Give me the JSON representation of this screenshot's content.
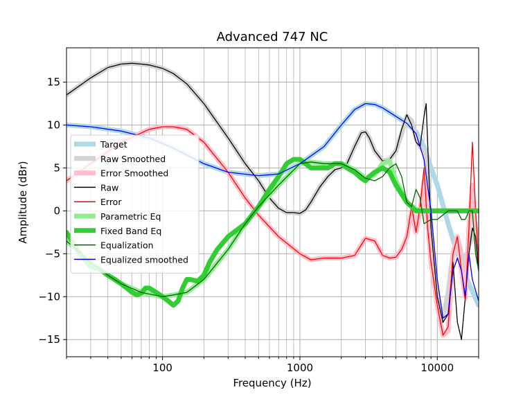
{
  "chart_data": {
    "type": "line",
    "title": "Advanced 747 NC",
    "xlabel": "Frequency (Hz)",
    "ylabel": "Amplitude (dBr)",
    "xscale": "log",
    "xlim": [
      20,
      20000
    ],
    "ylim": [
      -17,
      19
    ],
    "grid": true,
    "legend_placement": "center-left",
    "x_ticks": [
      {
        "value": 100,
        "label": "100"
      },
      {
        "value": 1000,
        "label": "1000"
      },
      {
        "value": 10000,
        "label": "10000"
      }
    ],
    "y_ticks": [
      {
        "value": -15,
        "label": "−15"
      },
      {
        "value": -10,
        "label": "−10"
      },
      {
        "value": -5,
        "label": "−5"
      },
      {
        "value": 0,
        "label": "0"
      },
      {
        "value": 5,
        "label": "5"
      },
      {
        "value": 10,
        "label": "10"
      },
      {
        "value": 15,
        "label": "15"
      }
    ],
    "series": [
      {
        "name": "Target",
        "color": "#add8e6",
        "style": "thick",
        "x": [
          20,
          30,
          50,
          80,
          120,
          200,
          300,
          500,
          700,
          1000,
          1500,
          2000,
          2500,
          3000,
          3500,
          4000,
          5000,
          6000,
          7000,
          8000,
          9000,
          10000,
          12000,
          14000,
          17000,
          20000
        ],
        "y": [
          10,
          9.8,
          9.3,
          8.5,
          7.3,
          5.5,
          4.5,
          4.1,
          4.3,
          5.5,
          7.5,
          10,
          11.8,
          12.5,
          12.4,
          12,
          11,
          10.2,
          9.2,
          7.5,
          5,
          3,
          -1.5,
          -5,
          -8.5,
          -11
        ]
      },
      {
        "name": "Raw Smoothed",
        "color": "#d3d3d3",
        "style": "thick",
        "x": [
          20,
          30,
          40,
          50,
          60,
          70,
          80,
          100,
          120,
          150,
          200,
          300,
          400,
          500,
          600,
          700,
          800,
          900,
          1000,
          1100,
          1200,
          1400,
          1600,
          1800,
          2000,
          2200,
          2500,
          2800,
          3000,
          3200,
          3500,
          4000,
          4500,
          5000,
          5500,
          6000,
          6500,
          7000,
          7500,
          8000,
          8500,
          9000,
          10000,
          11000,
          12000,
          13000,
          14000,
          15000,
          16000,
          17000,
          18000,
          19000,
          20000
        ],
        "y": [
          13.5,
          15.5,
          16.7,
          17.1,
          17.2,
          17.1,
          17,
          16.6,
          16,
          14.8,
          12.5,
          8.5,
          5.5,
          3.5,
          1.5,
          0.3,
          -0.2,
          -0.2,
          -0.3,
          0.1,
          1,
          2.8,
          4,
          4.8,
          5,
          5.5,
          7.5,
          9.1,
          9.2,
          8.5,
          7,
          5.8,
          6,
          7,
          9,
          11,
          10.5,
          8.5,
          7.5,
          7,
          5,
          -3,
          -10,
          -12.5,
          -9.5,
          -5,
          -3,
          -5,
          -6,
          -4,
          -3,
          -2,
          -3
        ]
      },
      {
        "name": "Error Smoothed",
        "color": "#ffc0cb",
        "style": "thick",
        "x": [
          20,
          30,
          50,
          80,
          100,
          120,
          150,
          200,
          300,
          400,
          500,
          700,
          1000,
          1200,
          1500,
          2000,
          2500,
          3000,
          3500,
          4000,
          4500,
          5000,
          5500,
          6000,
          6500,
          7000,
          7500,
          8000,
          8500,
          9000,
          10000,
          11000,
          12000,
          13000,
          14000,
          15000,
          16000,
          17000,
          18000,
          19000,
          20000
        ],
        "y": [
          3.5,
          5.5,
          8,
          9.5,
          9.8,
          9.8,
          9.5,
          8,
          4.5,
          1.5,
          -0.5,
          -3,
          -5,
          -5.7,
          -5.5,
          -5.5,
          -5.2,
          -3.2,
          -3.5,
          -5.2,
          -5.5,
          -5.4,
          -4.5,
          -3,
          0,
          -2.5,
          0,
          3.5,
          -1,
          -6,
          -11,
          -14.5,
          -14,
          -5,
          -3,
          -7,
          -10,
          -2,
          3,
          -3,
          -6
        ]
      },
      {
        "name": "Raw",
        "color": "#000000",
        "style": "thin",
        "x": [
          20,
          30,
          40,
          50,
          60,
          70,
          80,
          100,
          120,
          150,
          200,
          300,
          400,
          500,
          600,
          700,
          800,
          900,
          1000,
          1100,
          1200,
          1400,
          1600,
          1800,
          2000,
          2200,
          2500,
          2800,
          3000,
          3200,
          3500,
          4000,
          4500,
          5000,
          5500,
          6000,
          6500,
          7000,
          7500,
          8000,
          8300,
          8600,
          9000,
          10000,
          11000,
          12000,
          13000,
          14000,
          15000,
          16000,
          17000,
          18000,
          19000,
          20000
        ],
        "y": [
          13.5,
          15.5,
          16.7,
          17.1,
          17.2,
          17.1,
          17,
          16.6,
          16,
          14.8,
          12.5,
          8.5,
          5.5,
          3.5,
          1.5,
          0.3,
          -0.2,
          -0.2,
          -0.3,
          0.1,
          1,
          2.8,
          4,
          4.8,
          5,
          5.5,
          7.5,
          9.1,
          9.2,
          8.5,
          7,
          5.8,
          6,
          7,
          9.5,
          11.2,
          10,
          8,
          7.5,
          11,
          12.5,
          6,
          -2,
          -10,
          -13,
          -12,
          -6,
          -13,
          -15,
          -10,
          -5,
          -2,
          -3,
          -7
        ]
      },
      {
        "name": "Error",
        "color": "#ff0000",
        "style": "thin",
        "x": [
          20,
          30,
          50,
          80,
          100,
          120,
          150,
          200,
          300,
          400,
          500,
          700,
          1000,
          1200,
          1500,
          2000,
          2500,
          3000,
          3500,
          4000,
          4500,
          5000,
          5500,
          6000,
          6500,
          7000,
          7500,
          8000,
          8500,
          9000,
          10000,
          11000,
          12000,
          13000,
          14000,
          15000,
          16000,
          17000,
          18000,
          19000,
          20000
        ],
        "y": [
          3.5,
          5.5,
          8,
          9.5,
          9.8,
          9.8,
          9.5,
          8,
          4.5,
          1.5,
          -0.5,
          -3,
          -5,
          -5.7,
          -5.5,
          -5.5,
          -5.2,
          -3.2,
          -3.5,
          -5.2,
          -5.5,
          -5.4,
          -4.5,
          -3,
          0.5,
          -2.5,
          0.5,
          5,
          -2,
          -6,
          -11,
          -14.5,
          -13.5,
          -5,
          -3,
          -7,
          -10.5,
          -2,
          8,
          0,
          -6
        ]
      },
      {
        "name": "Parametric Eq",
        "color": "#90ee90",
        "style": "thick",
        "x": [
          20,
          30,
          40,
          50,
          70,
          100,
          120,
          150,
          200,
          300,
          400,
          500,
          700,
          1000,
          1200,
          1500,
          2000,
          2500,
          3000,
          3500,
          4000,
          4500,
          5000,
          6000,
          7000,
          8000,
          10000,
          12000,
          15000,
          20000
        ],
        "y": [
          -3.5,
          -6,
          -7.5,
          -8.5,
          -9.5,
          -10,
          -9.8,
          -9.5,
          -8,
          -4.5,
          -1.5,
          0.5,
          3,
          5.5,
          5.7,
          5.5,
          5.5,
          4.8,
          3.8,
          4.2,
          5.5,
          5.8,
          3.5,
          1,
          0.2,
          0,
          0,
          0,
          0,
          0
        ]
      },
      {
        "name": "Fixed Band Eq",
        "color": "#32cd32",
        "style": "thick",
        "x": [
          20,
          25,
          30,
          35,
          40,
          45,
          50,
          55,
          60,
          65,
          70,
          75,
          80,
          90,
          100,
          110,
          120,
          130,
          140,
          150,
          160,
          180,
          200,
          220,
          250,
          300,
          400,
          500,
          600,
          700,
          800,
          900,
          1000,
          1100,
          1200,
          1400,
          1600,
          1800,
          2000,
          2200,
          2500,
          2800,
          3000,
          3200,
          3500,
          4000,
          4500,
          5000,
          6000,
          7000,
          8000,
          10000,
          12000,
          15000,
          20000
        ],
        "y": [
          -2.5,
          -5,
          -6.5,
          -6.8,
          -7.5,
          -8,
          -8.5,
          -9,
          -9.5,
          -9.8,
          -9.6,
          -9,
          -9,
          -9.5,
          -10,
          -10.5,
          -11,
          -10.5,
          -9,
          -8,
          -8,
          -8.2,
          -7.5,
          -6,
          -4.5,
          -3,
          -1.5,
          0.5,
          2.5,
          4,
          5.5,
          6,
          6,
          5.5,
          5,
          5,
          5,
          5.5,
          5.5,
          5,
          4.5,
          3.8,
          3.5,
          4,
          4.5,
          5,
          4.5,
          3,
          1,
          0,
          0,
          0,
          0,
          0,
          0
        ]
      },
      {
        "name": "Equalization",
        "color": "#006400",
        "style": "thin",
        "x": [
          20,
          30,
          40,
          50,
          70,
          100,
          120,
          150,
          200,
          300,
          400,
          500,
          700,
          1000,
          1200,
          1500,
          2000,
          2500,
          3000,
          3500,
          4000,
          4500,
          5000,
          5500,
          6000,
          6500,
          7000,
          7500,
          8000,
          9000,
          10000,
          12000,
          14000,
          15000,
          16000,
          17000,
          18000,
          19000,
          20000
        ],
        "y": [
          -3.5,
          -6,
          -7.5,
          -8.5,
          -9.5,
          -10,
          -9.8,
          -9.5,
          -8,
          -4.5,
          -1.5,
          0.5,
          3,
          5.5,
          5.7,
          5.5,
          5.5,
          4.8,
          3.8,
          3.5,
          4,
          5,
          5.5,
          4,
          1,
          0.5,
          2.5,
          1.5,
          -1.5,
          -1,
          -1,
          0,
          0,
          -1,
          -1,
          0,
          0,
          -5,
          -7
        ]
      },
      {
        "name": "Equalized smoothed",
        "color": "#0000ff",
        "style": "thin",
        "x": [
          20,
          30,
          50,
          80,
          120,
          200,
          300,
          500,
          700,
          1000,
          1500,
          2000,
          2500,
          3000,
          3500,
          4000,
          5000,
          6000,
          7000,
          8000,
          9000,
          10000,
          11000,
          12000,
          13000,
          14000,
          15000,
          16000,
          17000,
          18000,
          20000
        ],
        "y": [
          10,
          9.8,
          9.3,
          8.5,
          7.3,
          5.5,
          4.5,
          4.1,
          4.3,
          5.5,
          7.5,
          10,
          11.8,
          12.5,
          12.4,
          12,
          11,
          10.2,
          9,
          6,
          0,
          -8,
          -12.5,
          -12,
          -7,
          -5.5,
          -7,
          -10,
          -5,
          -8,
          -10.5
        ]
      }
    ]
  }
}
